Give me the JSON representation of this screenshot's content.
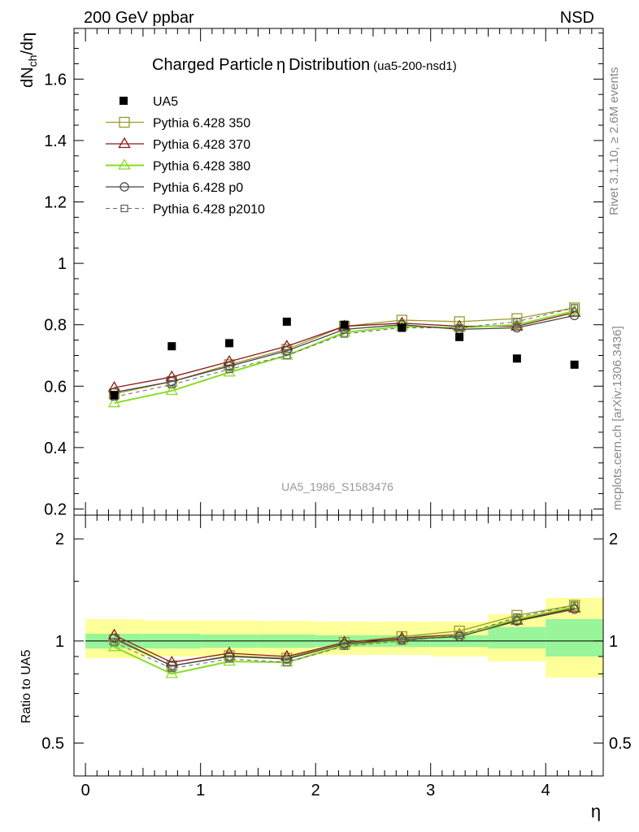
{
  "header": {
    "left": "200 GeV ppbar",
    "right": "NSD"
  },
  "side_text": {
    "rivet": "Rivet 3.1.10, ≥ 2.6M events",
    "mcplots": "mcplots.cern.ch [arXiv:1306.3436]"
  },
  "watermark": "UA5_1986_S1583476",
  "colors": {
    "350": "#9a9a2a",
    "370": "#8b1a1a",
    "380": "#88dd22",
    "p0": "#444444",
    "p2010": "#666666",
    "band_inner": "#99f599",
    "band_outer": "#ffff99"
  },
  "chart_data": [
    {
      "type": "line",
      "title_main": "Charged Particle",
      "title_sym": "η",
      "title_rest": "Distribution",
      "title_tag": "(ua5-200-nsd1)",
      "ylabel": "dN",
      "ylabel_sub": "ch",
      "ylabel_rest": "/dη",
      "xlim": [
        -0.1,
        4.5
      ],
      "ylim": [
        0.18,
        1.765
      ],
      "yticks": [
        0.2,
        0.4,
        0.6,
        0.8,
        1,
        1.2,
        1.4,
        1.6
      ],
      "ytick_labels": [
        "0.2",
        "0.4",
        "0.6",
        "0.8",
        "1",
        "1.2",
        "1.4",
        "1.6"
      ],
      "x": [
        0.25,
        0.75,
        1.25,
        1.75,
        2.25,
        2.75,
        3.25,
        3.75,
        4.25
      ],
      "data": {
        "name": "UA5",
        "values": [
          0.57,
          0.73,
          0.74,
          0.81,
          0.8,
          0.79,
          0.76,
          0.69,
          0.67
        ]
      },
      "series": [
        {
          "name": "Pythia 6.428 350",
          "values": [
            0.575,
            0.615,
            0.67,
            0.72,
            0.795,
            0.815,
            0.81,
            0.82,
            0.855
          ]
        },
        {
          "name": "Pythia 6.428 370",
          "values": [
            0.595,
            0.63,
            0.68,
            0.73,
            0.795,
            0.805,
            0.795,
            0.795,
            0.84
          ]
        },
        {
          "name": "Pythia 6.428 380",
          "values": [
            0.545,
            0.585,
            0.645,
            0.7,
            0.775,
            0.795,
            0.79,
            0.8,
            0.845
          ]
        },
        {
          "name": "Pythia 6.428 p0",
          "values": [
            0.58,
            0.615,
            0.665,
            0.715,
            0.785,
            0.8,
            0.785,
            0.79,
            0.83
          ]
        },
        {
          "name": "Pythia 6.428 p2010",
          "values": [
            0.565,
            0.605,
            0.655,
            0.7,
            0.77,
            0.79,
            0.79,
            0.81,
            0.855
          ]
        }
      ]
    },
    {
      "type": "line",
      "ylabel": "Ratio to UA5",
      "xlabel": "η",
      "xlim": [
        -0.1,
        4.5
      ],
      "ylim": [
        0.4,
        2.35
      ],
      "log_y": true,
      "xticks": [
        0,
        1,
        2,
        3,
        4
      ],
      "xtick_labels": [
        "0",
        "1",
        "2",
        "3",
        "4"
      ],
      "yticks": [
        0.5,
        1,
        2
      ],
      "ytick_labels": [
        "0.5",
        "1",
        "2"
      ],
      "x": [
        0.25,
        0.75,
        1.25,
        1.75,
        2.25,
        2.75,
        3.25,
        3.75,
        4.25
      ],
      "bins": [
        [
          0.0,
          0.5
        ],
        [
          0.5,
          1.0
        ],
        [
          1.0,
          1.5
        ],
        [
          1.5,
          2.0
        ],
        [
          2.0,
          2.5
        ],
        [
          2.5,
          3.0
        ],
        [
          3.0,
          3.5
        ],
        [
          3.5,
          4.0
        ],
        [
          4.0,
          4.5
        ]
      ],
      "band_inner": [
        [
          0.95,
          1.05
        ],
        [
          0.95,
          1.05
        ],
        [
          0.955,
          1.045
        ],
        [
          0.955,
          1.045
        ],
        [
          0.96,
          1.04
        ],
        [
          0.96,
          1.04
        ],
        [
          0.96,
          1.04
        ],
        [
          0.95,
          1.1
        ],
        [
          0.9,
          1.16
        ]
      ],
      "band_outer": [
        [
          0.89,
          1.16
        ],
        [
          0.9,
          1.15
        ],
        [
          0.9,
          1.15
        ],
        [
          0.905,
          1.145
        ],
        [
          0.91,
          1.14
        ],
        [
          0.91,
          1.14
        ],
        [
          0.9,
          1.14
        ],
        [
          0.87,
          1.2
        ],
        [
          0.78,
          1.34
        ]
      ],
      "series": [
        {
          "name": "Pythia 6.428 350",
          "values": [
            1.01,
            0.845,
            0.905,
            0.89,
            0.99,
            1.03,
            1.07,
            1.19,
            1.275
          ]
        },
        {
          "name": "Pythia 6.428 370",
          "values": [
            1.04,
            0.865,
            0.92,
            0.9,
            0.99,
            1.02,
            1.045,
            1.15,
            1.25
          ]
        },
        {
          "name": "Pythia 6.428 380",
          "values": [
            0.96,
            0.8,
            0.87,
            0.865,
            0.97,
            1.005,
            1.04,
            1.16,
            1.26
          ]
        },
        {
          "name": "Pythia 6.428 p0",
          "values": [
            1.02,
            0.845,
            0.9,
            0.885,
            0.98,
            1.01,
            1.03,
            1.145,
            1.24
          ]
        },
        {
          "name": "Pythia 6.428 p2010",
          "values": [
            0.99,
            0.83,
            0.885,
            0.865,
            0.965,
            1.0,
            1.04,
            1.175,
            1.275
          ]
        }
      ]
    }
  ]
}
